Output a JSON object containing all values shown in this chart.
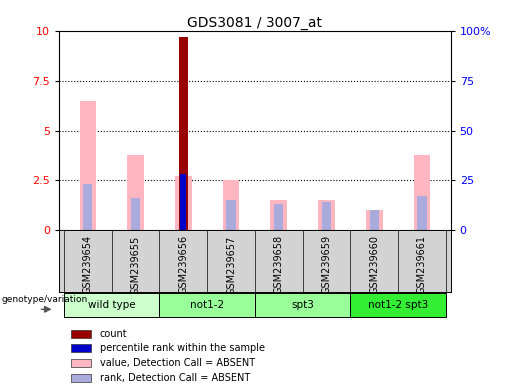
{
  "title": "GDS3081 / 3007_at",
  "samples": [
    "GSM239654",
    "GSM239655",
    "GSM239656",
    "GSM239657",
    "GSM239658",
    "GSM239659",
    "GSM239660",
    "GSM239661"
  ],
  "count_values": [
    0,
    0,
    9.7,
    0,
    0,
    0,
    0,
    0
  ],
  "percentile_rank_values": [
    0,
    0,
    2.8,
    0,
    0,
    0,
    0,
    0
  ],
  "absent_value_values": [
    6.5,
    3.8,
    2.7,
    2.5,
    1.5,
    1.5,
    1.0,
    3.8
  ],
  "absent_rank_values": [
    2.3,
    1.6,
    2.8,
    1.5,
    1.3,
    1.4,
    1.0,
    1.7
  ],
  "ylim_left": [
    0,
    10
  ],
  "ylim_right": [
    0,
    100
  ],
  "yticks_left": [
    0,
    2.5,
    5.0,
    7.5,
    10.0
  ],
  "ytick_labels_left": [
    "0",
    "2.5",
    "5",
    "7.5",
    "10"
  ],
  "yticks_right": [
    0,
    25,
    50,
    75,
    100
  ],
  "ytick_labels_right": [
    "0",
    "25",
    "50",
    "75",
    "100%"
  ],
  "count_color": "#990000",
  "percentile_color": "#0000CC",
  "absent_value_color": "#FFB6C1",
  "absent_rank_color": "#AAAADD",
  "plot_bg": "white",
  "bar_width": 0.35,
  "count_bar_width": 0.18,
  "rank_bar_width": 0.12,
  "group_data": [
    {
      "label": "wild type",
      "start": 0,
      "end": 1,
      "color": "#ccffcc"
    },
    {
      "label": "not1-2",
      "start": 2,
      "end": 3,
      "color": "#99ff99"
    },
    {
      "label": "spt3",
      "start": 4,
      "end": 5,
      "color": "#99ff99"
    },
    {
      "label": "not1-2 spt3",
      "start": 6,
      "end": 7,
      "color": "#33ee33"
    }
  ],
  "legend_items": [
    {
      "label": "count",
      "color": "#990000"
    },
    {
      "label": "percentile rank within the sample",
      "color": "#0000CC"
    },
    {
      "label": "value, Detection Call = ABSENT",
      "color": "#FFB6C1"
    },
    {
      "label": "rank, Detection Call = ABSENT",
      "color": "#AAAADD"
    }
  ]
}
